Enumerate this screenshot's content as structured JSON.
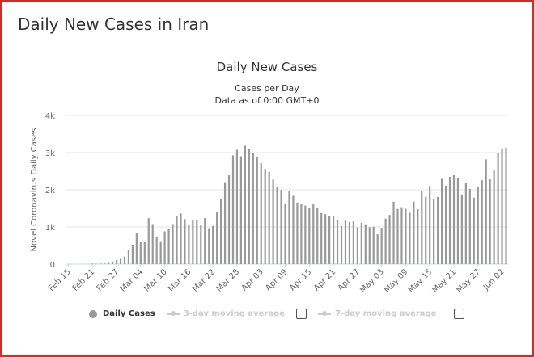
{
  "page_title": "Daily New Cases in Iran",
  "chart_data": {
    "type": "bar",
    "title": "Daily New Cases",
    "subtitle": "Cases per Day",
    "subtitle2": "Data as of 0:00 GMT+0",
    "ylabel": "Novel Coronavirus Daily Cases",
    "ylim": [
      0,
      4000
    ],
    "yticks": [
      "0",
      "1k",
      "2k",
      "3k",
      "4k"
    ],
    "grid": true,
    "bar_color": "#999999",
    "x_start": "Feb 15",
    "xtick_labels": [
      "Feb 15",
      "Feb 21",
      "Feb 27",
      "Mar 04",
      "Mar 10",
      "Mar 16",
      "Mar 22",
      "Mar 28",
      "Apr 03",
      "Apr 09",
      "Apr 15",
      "Apr 21",
      "Apr 27",
      "May 03",
      "May 09",
      "May 15",
      "May 21",
      "May 27",
      "Jun 02"
    ],
    "values": [
      0,
      0,
      0,
      0,
      2,
      3,
      13,
      10,
      15,
      18,
      34,
      44,
      106,
      143,
      205,
      385,
      523,
      835,
      586,
      591,
      1234,
      1076,
      743,
      595,
      881,
      958,
      1075,
      1289,
      1365,
      1209,
      1053,
      1178,
      1192,
      1046,
      1237,
      966,
      1028,
      1411,
      1762,
      2206,
      2389,
      2926,
      3076,
      2901,
      3186,
      3111,
      2987,
      2875,
      2715,
      2560,
      2483,
      2274,
      2089,
      1997,
      1634,
      1972,
      1837,
      1657,
      1617,
      1574,
      1512,
      1606,
      1499,
      1374,
      1343,
      1294,
      1297,
      1194,
      1030,
      1168,
      1134,
      1153,
      991,
      1112,
      1073,
      993,
      1006,
      802,
      976,
      1223,
      1323,
      1680,
      1485,
      1529,
      1489,
      1383,
      1683,
      1481,
      1958,
      1808,
      2102,
      1757,
      1806,
      2294,
      2111,
      2346,
      2392,
      2311,
      1869,
      2180,
      2023,
      1787,
      2080,
      2258,
      2819,
      2282,
      2516,
      2979,
      3117,
      3134
    ],
    "legend": {
      "position": "bottom",
      "items": [
        {
          "label": "Daily Cases",
          "enabled": true
        },
        {
          "label": "3-day moving average",
          "enabled": false
        },
        {
          "label": "7-day moving average",
          "enabled": false
        }
      ]
    }
  }
}
